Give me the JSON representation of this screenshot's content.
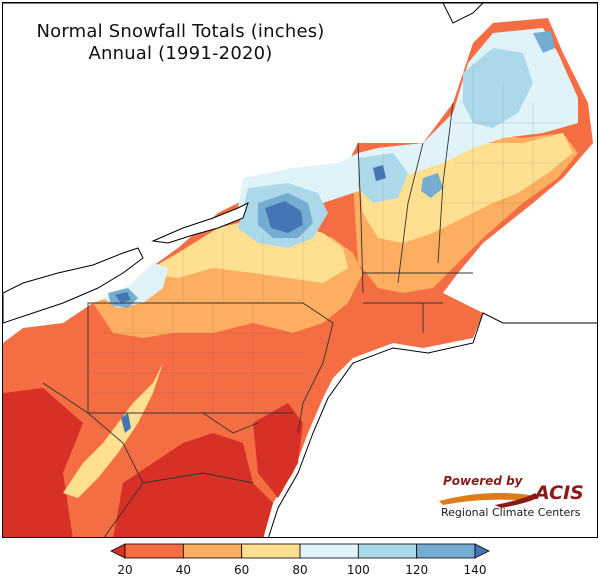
{
  "title": {
    "line1": "Normal Snowfall Totals (inches)",
    "line2": "Annual (1991-2020)"
  },
  "legend": {
    "ticks": [
      "20",
      "40",
      "60",
      "80",
      "100",
      "120",
      "140"
    ],
    "colors": [
      "#d73027",
      "#f46d43",
      "#fdae61",
      "#fee090",
      "#e0f3f8",
      "#abd9e9",
      "#74add1",
      "#4575b4"
    ],
    "extend": "both"
  },
  "badge": {
    "powered_by": "Powered by",
    "acis": "ACIS",
    "subtitle": "Regional Climate Centers"
  },
  "map": {
    "region": "Northeast United States",
    "water_color": "#ffffff",
    "border_color": "#333333"
  }
}
